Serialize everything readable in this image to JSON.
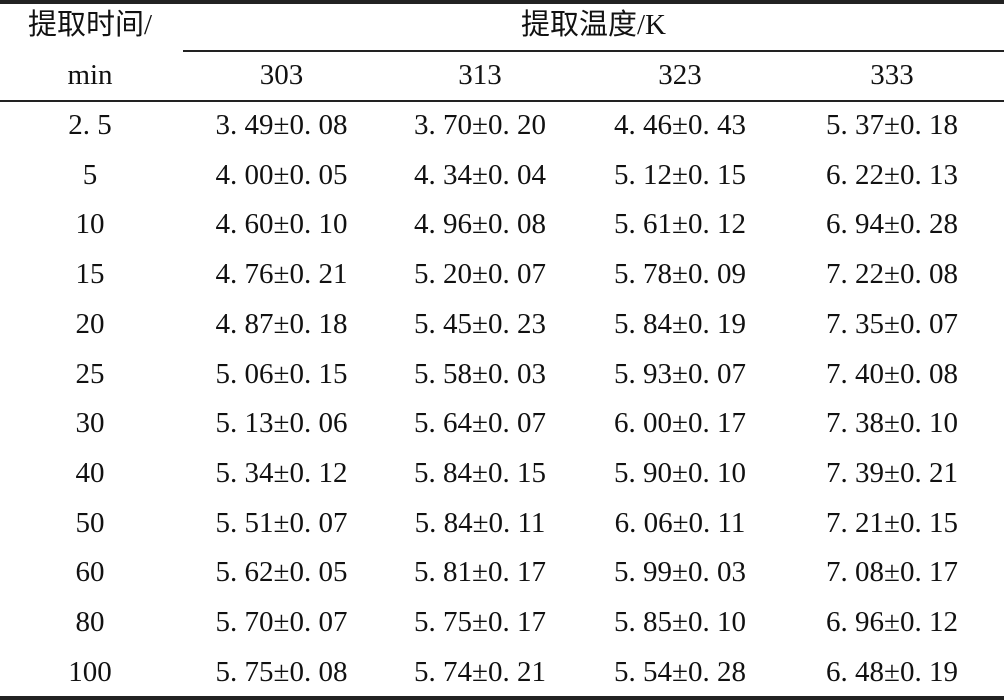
{
  "table": {
    "row_header_line1": "提取时间/",
    "row_header_line2": "min",
    "group_header": "提取温度/K",
    "columns": [
      "303",
      "313",
      "323",
      "333"
    ],
    "rows": [
      {
        "time": "2. 5",
        "values": [
          "3. 49±0. 08",
          "3. 70±0. 20",
          "4. 46±0. 43",
          "5. 37±0. 18"
        ]
      },
      {
        "time": "5",
        "values": [
          "4. 00±0. 05",
          "4. 34±0. 04",
          "5. 12±0. 15",
          "6. 22±0. 13"
        ]
      },
      {
        "time": "10",
        "values": [
          "4. 60±0. 10",
          "4. 96±0. 08",
          "5. 61±0. 12",
          "6. 94±0. 28"
        ]
      },
      {
        "time": "15",
        "values": [
          "4. 76±0. 21",
          "5. 20±0. 07",
          "5. 78±0. 09",
          "7. 22±0. 08"
        ]
      },
      {
        "time": "20",
        "values": [
          "4. 87±0. 18",
          "5. 45±0. 23",
          "5. 84±0. 19",
          "7. 35±0. 07"
        ]
      },
      {
        "time": "25",
        "values": [
          "5. 06±0. 15",
          "5. 58±0. 03",
          "5. 93±0. 07",
          "7. 40±0. 08"
        ]
      },
      {
        "time": "30",
        "values": [
          "5. 13±0. 06",
          "5. 64±0. 07",
          "6. 00±0. 17",
          "7. 38±0. 10"
        ]
      },
      {
        "time": "40",
        "values": [
          "5. 34±0. 12",
          "5. 84±0. 15",
          "5. 90±0. 10",
          "7. 39±0. 21"
        ]
      },
      {
        "time": "50",
        "values": [
          "5. 51±0. 07",
          "5. 84±0. 11",
          "6. 06±0. 11",
          "7. 21±0. 15"
        ]
      },
      {
        "time": "60",
        "values": [
          "5. 62±0. 05",
          "5. 81±0. 17",
          "5. 99±0. 03",
          "7. 08±0. 17"
        ]
      },
      {
        "time": "80",
        "values": [
          "5. 70±0. 07",
          "5. 75±0. 17",
          "5. 85±0. 10",
          "6. 96±0. 12"
        ]
      },
      {
        "time": "100",
        "values": [
          "5. 75±0. 08",
          "5. 74±0. 21",
          "5. 54±0. 28",
          "6. 48±0. 19"
        ]
      }
    ]
  }
}
